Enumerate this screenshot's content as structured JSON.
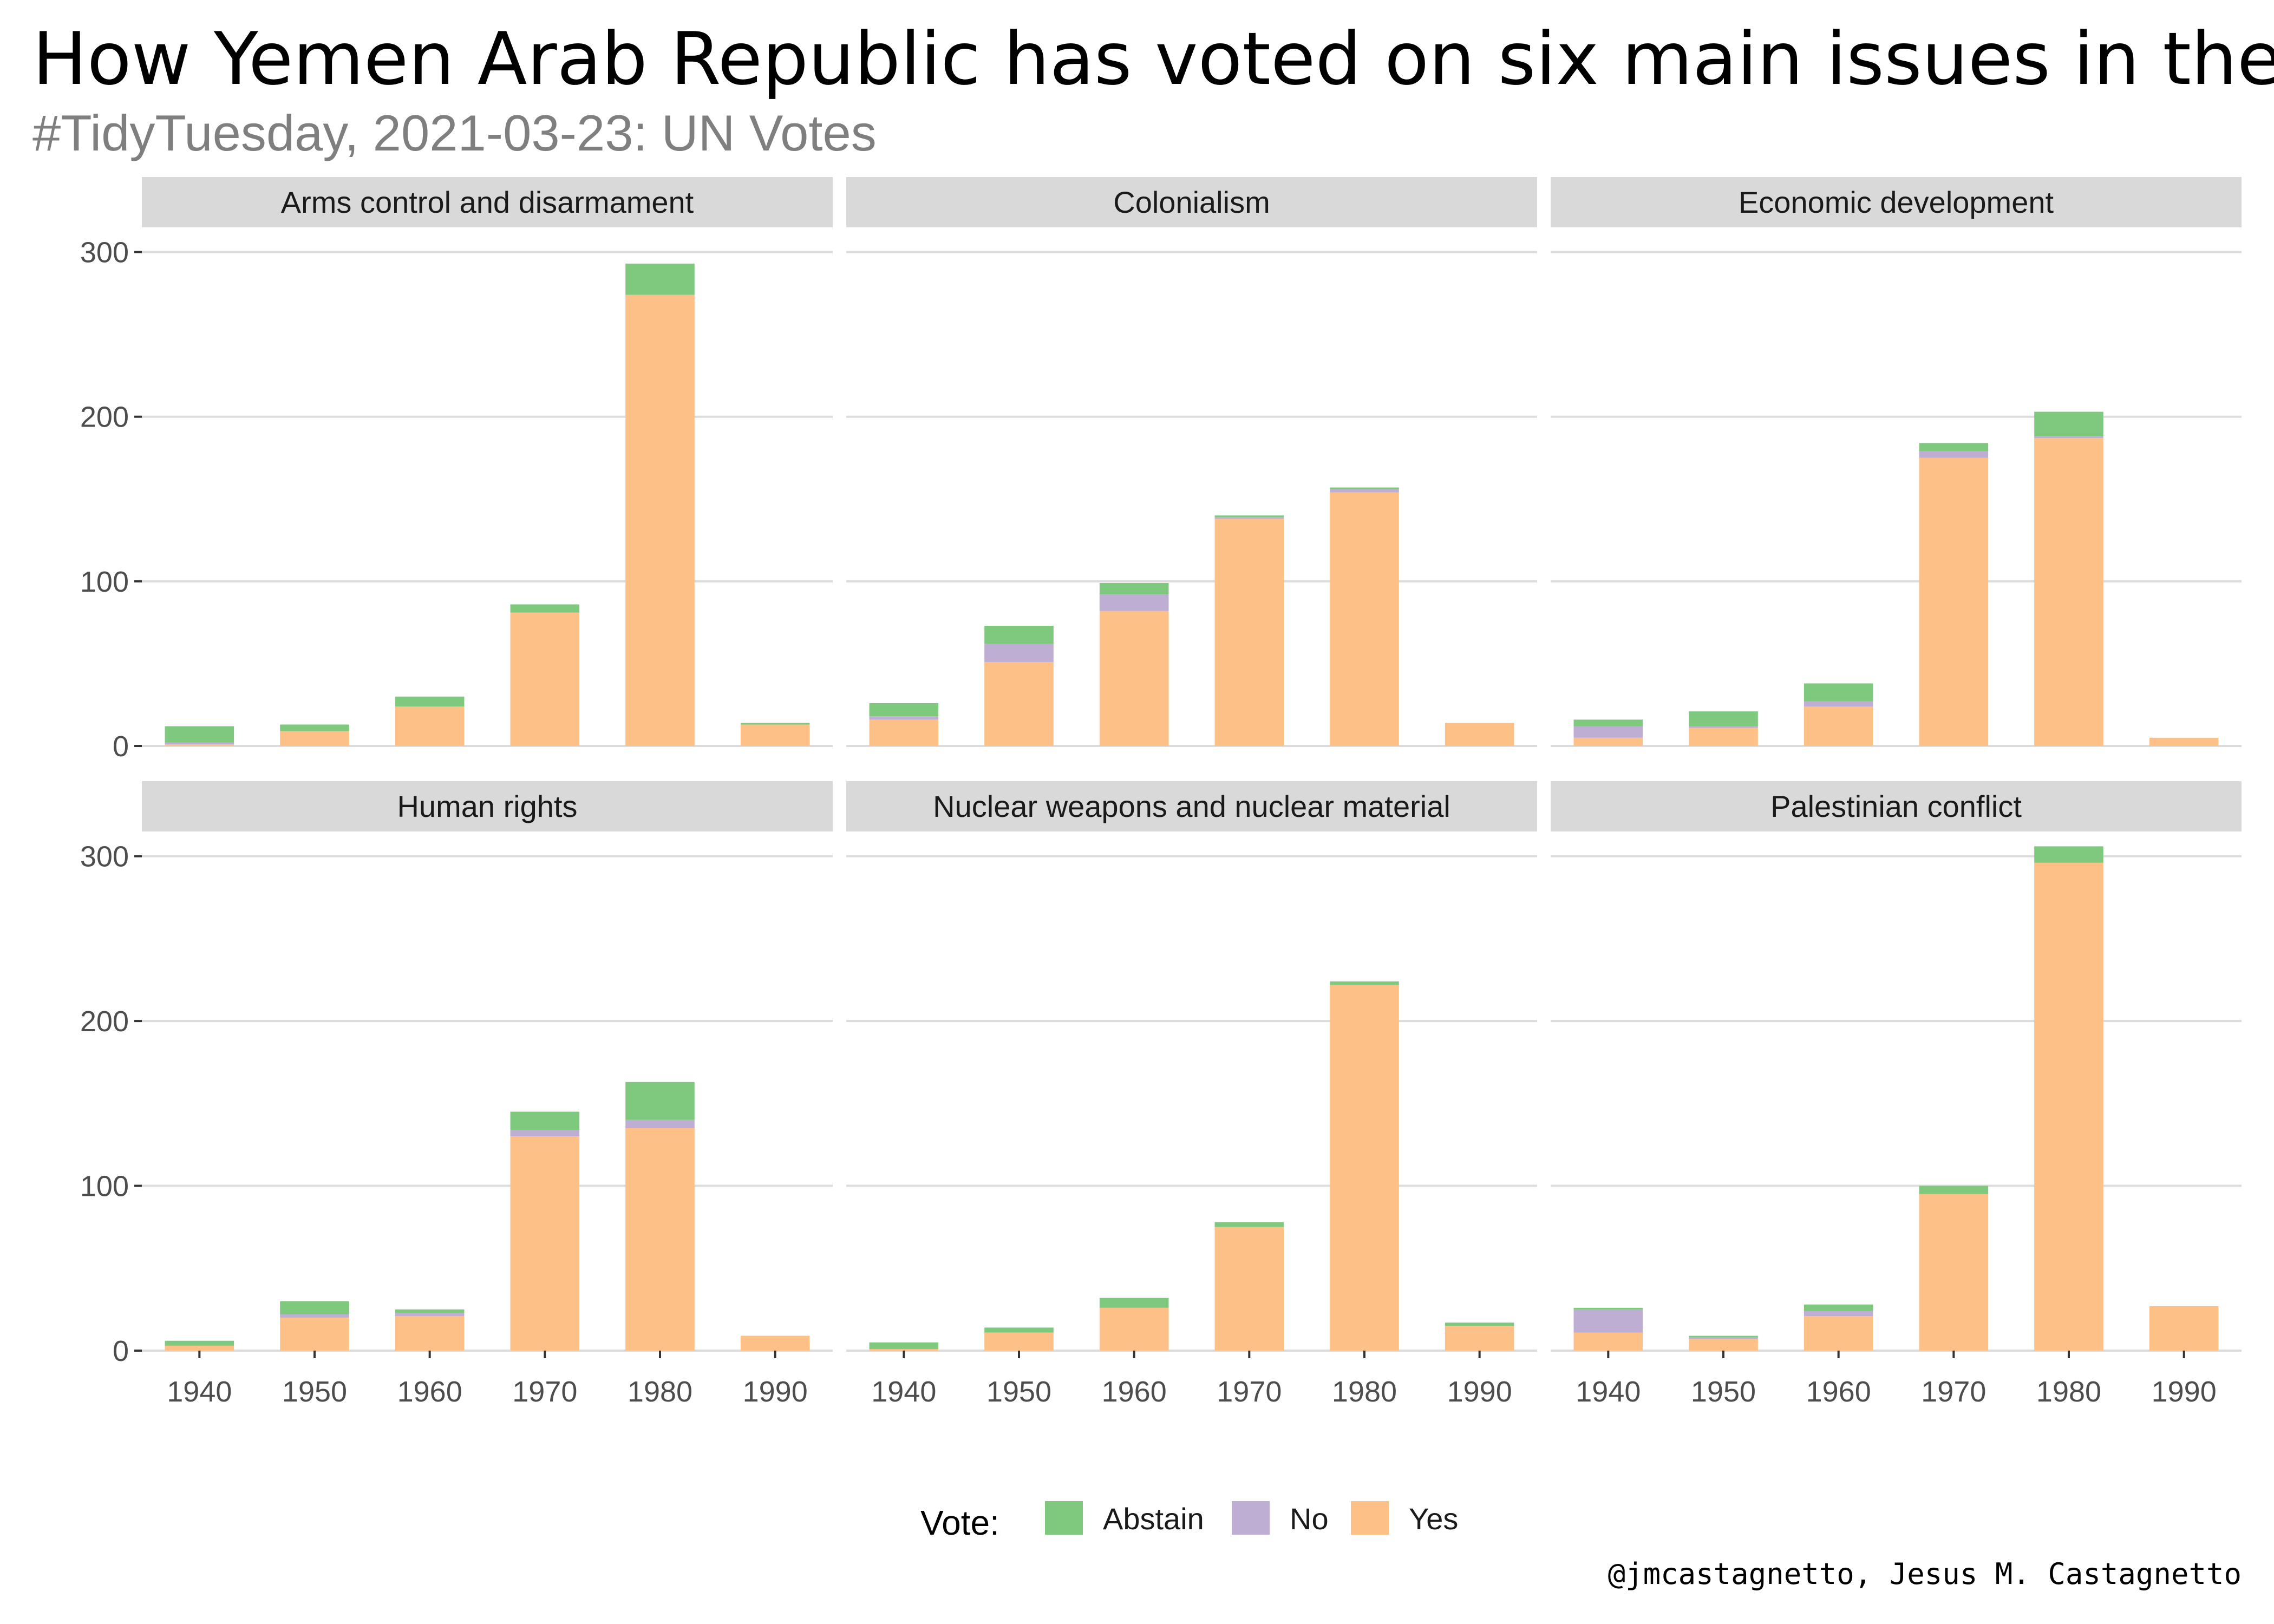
{
  "title": "How Yemen Arab Republic has voted on six main issues in the UN",
  "subtitle": "#TidyTuesday, 2021-03-23: UN Votes",
  "caption": "@jmcastagnetto, Jesus M. Castagnetto",
  "colors": {
    "Abstain": "#7fc97f",
    "No": "#beaed4",
    "Yes": "#fdc086"
  },
  "chart_data": {
    "type": "bar",
    "stacked": true,
    "categories": [
      "1940",
      "1950",
      "1960",
      "1970",
      "1980",
      "1990"
    ],
    "y_ticks": [
      "0",
      "100",
      "200",
      "300"
    ],
    "ylim": [
      0,
      315
    ],
    "grid": true,
    "legend": {
      "title": "Vote:",
      "position": "bottom",
      "entries": [
        "Abstain",
        "No",
        "Yes"
      ]
    },
    "panels": [
      {
        "title": "Arms control and disarmament",
        "series": [
          {
            "name": "Yes",
            "values": [
              1,
              9,
              24,
              81,
              274,
              13
            ]
          },
          {
            "name": "No",
            "values": [
              1,
              0,
              0,
              0,
              0,
              0
            ]
          },
          {
            "name": "Abstain",
            "values": [
              10,
              4,
              6,
              5,
              19,
              1
            ]
          }
        ]
      },
      {
        "title": "Colonialism",
        "series": [
          {
            "name": "Yes",
            "values": [
              16,
              51,
              82,
              138,
              154,
              14
            ]
          },
          {
            "name": "No",
            "values": [
              2,
              11,
              10,
              1,
              2,
              0
            ]
          },
          {
            "name": "Abstain",
            "values": [
              8,
              11,
              7,
              1,
              1,
              0
            ]
          }
        ]
      },
      {
        "title": "Economic development",
        "series": [
          {
            "name": "Yes",
            "values": [
              5,
              11,
              24,
              175,
              187,
              5
            ]
          },
          {
            "name": "No",
            "values": [
              7,
              1,
              3,
              4,
              1,
              0
            ]
          },
          {
            "name": "Abstain",
            "values": [
              4,
              9,
              11,
              5,
              15,
              0
            ]
          }
        ]
      },
      {
        "title": "Human rights",
        "series": [
          {
            "name": "Yes",
            "values": [
              3,
              20,
              21,
              130,
              135,
              9
            ]
          },
          {
            "name": "No",
            "values": [
              0,
              2,
              2,
              4,
              5,
              0
            ]
          },
          {
            "name": "Abstain",
            "values": [
              3,
              8,
              2,
              11,
              23,
              0
            ]
          }
        ]
      },
      {
        "title": "Nuclear weapons and nuclear material",
        "series": [
          {
            "name": "Yes",
            "values": [
              1,
              11,
              26,
              75,
              222,
              15
            ]
          },
          {
            "name": "No",
            "values": [
              0,
              0,
              0,
              0,
              0,
              0
            ]
          },
          {
            "name": "Abstain",
            "values": [
              4,
              3,
              6,
              3,
              2,
              2
            ]
          }
        ]
      },
      {
        "title": "Palestinian conflict",
        "series": [
          {
            "name": "Yes",
            "values": [
              11,
              7,
              21,
              95,
              296,
              27
            ]
          },
          {
            "name": "No",
            "values": [
              14,
              1,
              3,
              0,
              0,
              0
            ]
          },
          {
            "name": "Abstain",
            "values": [
              1,
              1,
              4,
              5,
              10,
              0
            ]
          }
        ]
      }
    ]
  }
}
